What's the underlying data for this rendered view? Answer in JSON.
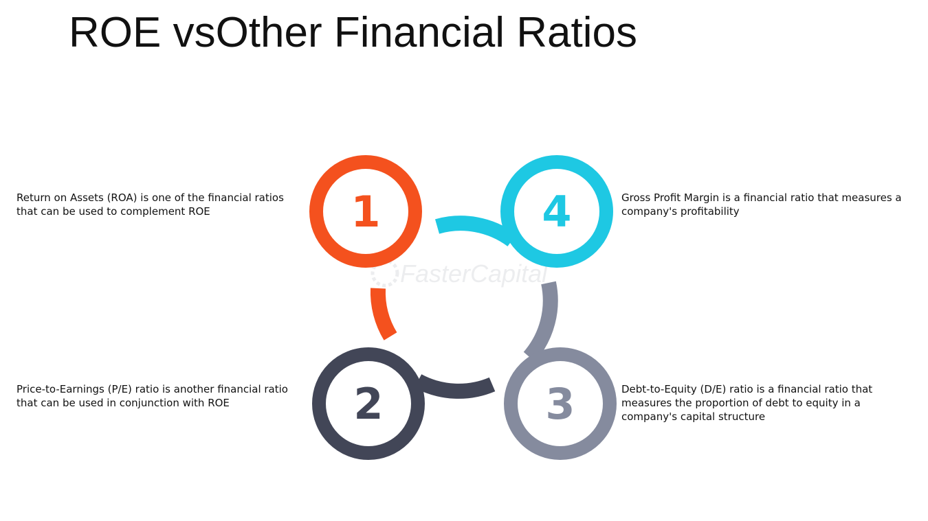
{
  "title": "ROE vsOther Financial Ratios",
  "colors": {
    "step1": "#f4511e",
    "step2": "#424657",
    "step3": "#858b9e",
    "step4": "#1ec8e3"
  },
  "watermark": "FasterCapital",
  "steps": [
    {
      "number": "1",
      "description": "Return on Assets (ROA) is one of the financial ratios that can be used to complement ROE"
    },
    {
      "number": "2",
      "description": "Price-to-Earnings (P/E) ratio is another financial ratio that can be used in conjunction with ROE"
    },
    {
      "number": "3",
      "description": "Debt-to-Equity (D/E) ratio is a financial ratio that measures the proportion of debt to equity in a company's capital structure"
    },
    {
      "number": "4",
      "description": "Gross Profit Margin is a financial ratio that measures a company's profitability"
    }
  ]
}
